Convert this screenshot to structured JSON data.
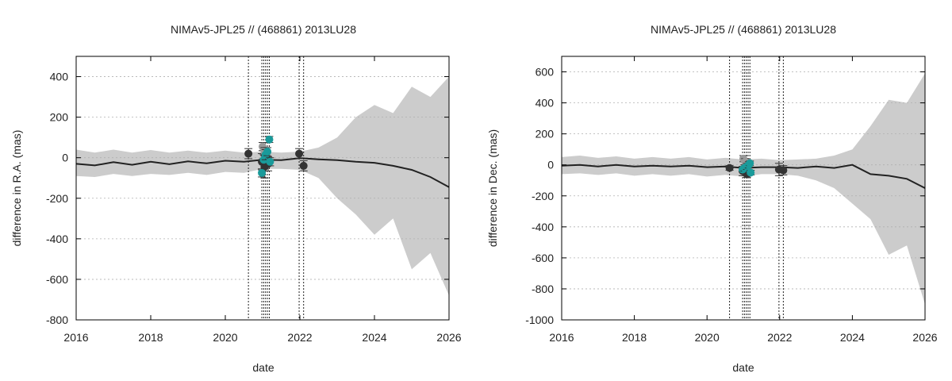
{
  "chart_data": [
    {
      "type": "line",
      "title": "NIMAv5-JPL25 // (468861) 2013LU28",
      "xlabel": "date",
      "ylabel": "difference in R.A. (mas)",
      "xlim": [
        2016,
        2026
      ],
      "ylim": [
        -800,
        500
      ],
      "xticks": [
        2016,
        2018,
        2020,
        2022,
        2024,
        2026
      ],
      "yticks": [
        -800,
        -600,
        -400,
        -200,
        0,
        200,
        400
      ],
      "grid": "horizontal dotted",
      "colors": {
        "curve": "#222222",
        "band": "#cccccc",
        "obs_dark": "#333333",
        "obs_gray": "#999999",
        "obs_teal": "#1a9a9a"
      },
      "vlines": [
        2020.62,
        2020.98,
        2021.03,
        2021.08,
        2021.13,
        2021.18,
        2021.98,
        2022.1
      ],
      "series": [
        {
          "role": "prediction",
          "x": [
            2016.0,
            2016.5,
            2017.0,
            2017.5,
            2018.0,
            2018.5,
            2019.0,
            2019.5,
            2020.0,
            2020.5,
            2021.0,
            2021.5,
            2022.0,
            2022.5,
            2023.0,
            2023.5,
            2024.0,
            2024.5,
            2025.0,
            2025.5,
            2026.0
          ],
          "y": [
            -30,
            -38,
            -22,
            -35,
            -20,
            -32,
            -18,
            -28,
            -15,
            -20,
            -10,
            -12,
            -2,
            -8,
            -12,
            -20,
            -25,
            -40,
            -60,
            -95,
            -145
          ]
        },
        {
          "role": "uncertainty_band",
          "x": [
            2016.0,
            2016.5,
            2017.0,
            2017.5,
            2018.0,
            2018.5,
            2019.0,
            2019.5,
            2020.0,
            2020.5,
            2021.0,
            2021.5,
            2022.0,
            2022.5,
            2023.0,
            2023.5,
            2024.0,
            2024.5,
            2025.0,
            2025.5,
            2026.0
          ],
          "upper": [
            40,
            25,
            40,
            25,
            38,
            25,
            35,
            25,
            35,
            25,
            30,
            25,
            30,
            50,
            100,
            200,
            260,
            220,
            350,
            300,
            400
          ],
          "lower": [
            -90,
            -95,
            -80,
            -90,
            -80,
            -85,
            -75,
            -85,
            -70,
            -75,
            -55,
            -55,
            -60,
            -100,
            -200,
            -280,
            -380,
            -300,
            -550,
            -470,
            -680
          ]
        },
        {
          "role": "observations",
          "name": "dark",
          "points": [
            [
              2020.62,
              20,
              25
            ],
            [
              2020.98,
              -20,
              40
            ],
            [
              2021.05,
              -45,
              55
            ],
            [
              2021.1,
              0,
              40
            ],
            [
              2021.15,
              -30,
              35
            ],
            [
              2021.98,
              20,
              25
            ],
            [
              2022.1,
              -40,
              25
            ]
          ]
        },
        {
          "role": "observations",
          "name": "gray",
          "points": [
            [
              2021.0,
              55,
              20
            ],
            [
              2021.05,
              30,
              20
            ]
          ]
        },
        {
          "role": "observations",
          "name": "teal",
          "points": [
            [
              2020.98,
              -75,
              20
            ],
            [
              2021.03,
              -10,
              25
            ],
            [
              2021.08,
              15,
              25
            ],
            [
              2021.13,
              30,
              20
            ],
            [
              2021.18,
              90,
              15
            ],
            [
              2021.2,
              -20,
              20
            ]
          ]
        }
      ]
    },
    {
      "type": "line",
      "title": "NIMAv5-JPL25 // (468861) 2013LU28",
      "xlabel": "date",
      "ylabel": "difference in Dec. (mas)",
      "xlim": [
        2016,
        2026
      ],
      "ylim": [
        -1000,
        700
      ],
      "xticks": [
        2016,
        2018,
        2020,
        2022,
        2024,
        2026
      ],
      "yticks": [
        -1000,
        -800,
        -600,
        -400,
        -200,
        0,
        200,
        400,
        600
      ],
      "grid": "horizontal dotted",
      "colors": {
        "curve": "#222222",
        "band": "#cccccc",
        "obs_dark": "#333333",
        "obs_gray": "#999999",
        "obs_teal": "#1a9a9a"
      },
      "vlines": [
        2020.62,
        2020.98,
        2021.03,
        2021.08,
        2021.13,
        2021.18,
        2021.98,
        2022.1
      ],
      "series": [
        {
          "role": "prediction",
          "x": [
            2016.0,
            2016.5,
            2017.0,
            2017.5,
            2018.0,
            2018.5,
            2019.0,
            2019.5,
            2020.0,
            2020.5,
            2021.0,
            2021.5,
            2022.0,
            2022.5,
            2023.0,
            2023.5,
            2024.0,
            2024.5,
            2025.0,
            2025.5,
            2026.0
          ],
          "y": [
            -5,
            0,
            -10,
            0,
            -10,
            -5,
            -10,
            -5,
            -15,
            -10,
            -20,
            -15,
            -15,
            -20,
            -10,
            -20,
            0,
            -60,
            -70,
            -90,
            -150
          ]
        },
        {
          "role": "uncertainty_band",
          "x": [
            2016.0,
            2016.5,
            2017.0,
            2017.5,
            2018.0,
            2018.5,
            2019.0,
            2019.5,
            2020.0,
            2020.5,
            2021.0,
            2021.5,
            2022.0,
            2022.5,
            2023.0,
            2023.5,
            2024.0,
            2024.5,
            2025.0,
            2025.5,
            2026.0
          ],
          "upper": [
            50,
            60,
            45,
            55,
            40,
            50,
            40,
            50,
            35,
            45,
            35,
            40,
            30,
            35,
            40,
            60,
            100,
            250,
            420,
            400,
            590
          ],
          "lower": [
            -60,
            -55,
            -65,
            -55,
            -70,
            -60,
            -70,
            -60,
            -75,
            -65,
            -75,
            -60,
            -60,
            -70,
            -100,
            -150,
            -250,
            -350,
            -580,
            -520,
            -900
          ]
        },
        {
          "role": "observations",
          "name": "dark",
          "points": [
            [
              2020.62,
              -20,
              15
            ],
            [
              2020.98,
              -40,
              30
            ],
            [
              2021.1,
              -60,
              20
            ],
            [
              2021.98,
              -30,
              40
            ],
            [
              2022.1,
              -35,
              30
            ]
          ]
        },
        {
          "role": "observations",
          "name": "gray",
          "points": [
            [
              2021.0,
              40,
              20
            ],
            [
              2021.05,
              20,
              20
            ]
          ]
        },
        {
          "role": "observations",
          "name": "teal",
          "points": [
            [
              2020.98,
              -30,
              15
            ],
            [
              2021.03,
              -20,
              20
            ],
            [
              2021.1,
              -10,
              20
            ],
            [
              2021.15,
              0,
              20
            ],
            [
              2021.2,
              -50,
              15
            ],
            [
              2021.18,
              10,
              15
            ]
          ]
        }
      ]
    }
  ]
}
